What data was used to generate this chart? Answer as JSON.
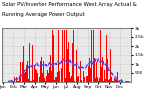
{
  "title1": "Solar PV/Inverter Performance West Array Actual &",
  "title2": "Running Average Power Output",
  "bar_color": "#ff0000",
  "avg_line_color": "#4444ff",
  "background_color": "#ffffff",
  "plot_bg_color": "#e8e8e8",
  "grid_color": "#aaaaaa",
  "ylim": [
    0,
    3000
  ],
  "ytick_vals": [
    500,
    1000,
    1500,
    2000,
    2500,
    3000
  ],
  "ytick_labels": [
    "500",
    "1k",
    "1.5k",
    "2k",
    "2.5k",
    "3k"
  ],
  "n_bars": 360,
  "title_fontsize": 3.8,
  "tick_fontsize": 3.2,
  "bar_width": 1.0
}
